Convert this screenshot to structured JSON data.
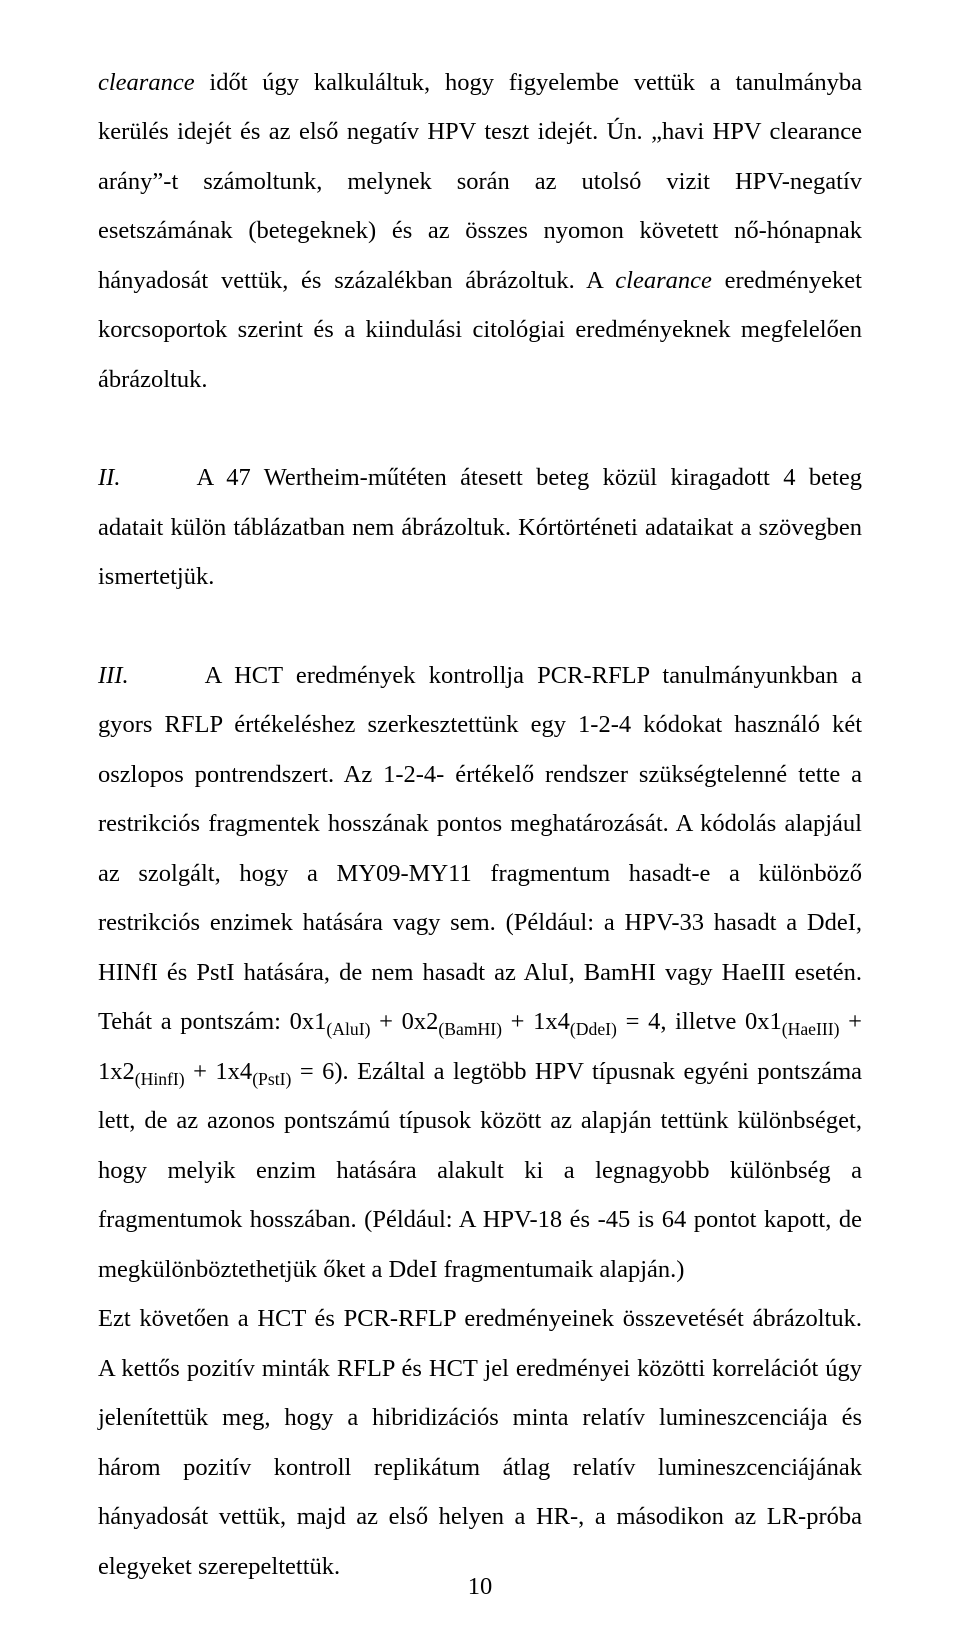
{
  "p1": {
    "lead_italic": "clearance",
    "rest": " időt úgy kalkuláltuk, hogy figyelembe vettük a tanulmányba kerülés idejét és az első negatív HPV teszt idejét. Ún. „havi HPV clearance arány”-t számoltunk, melynek során az utolsó vizit HPV-negatív esetszámának (betegeknek) és az összes nyomon követett nő-hónapnak hányadosát vettük, és százalékban ábrázoltuk. A ",
    "mid_italic": "clearance",
    "tail": " eredményeket korcsoportok szerint és a kiindulási citológiai eredményeknek megfelelően ábrázoltuk."
  },
  "p2": {
    "numeral": "II.",
    "text": "A 47 Wertheim-műtéten átesett beteg közül kiragadott 4 beteg adatait külön táblázatban nem ábrázoltuk. Kórtörténeti adataikat a szövegben ismertetjük."
  },
  "p3": {
    "numeral": "III.",
    "text_a": "A HCT eredmények kontrollja PCR-RFLP tanulmányunkban a gyors RFLP értékeléshez szerkesztettünk egy 1-2-4 kódokat használó két oszlopos pontrendszert. Az 1-2-4- értékelő rendszer szükségtelenné tette a restrikciós fragmentek hosszának pontos meghatározását. A kódolás alapjául az szolgált, hogy a MY09-MY11 fragmentum hasadt-e a különböző restrikciós enzimek hatására vagy sem. (Például: a HPV-33 hasadt a DdeI, HINfI és PstI hatására, de nem hasadt az AluI, BamHI vagy HaeIII esetén. Tehát a pontszám: 0x1",
    "sub1": "(AluI)",
    "text_b": " + 0x2",
    "sub2": "(BamHI)",
    "text_c": " + 1x4",
    "sub3": "(DdeI)",
    "text_d": " = 4, illetve 0x1",
    "sub4": "(HaeIII)",
    "text_e": " + 1x2",
    "sub5": "(HinfI)",
    "text_f": " + 1x4",
    "sub6": "(PstI)",
    "text_g": " = 6). Ezáltal a legtöbb HPV típusnak egyéni pontszáma lett, de az azonos pontszámú típusok között az alapján tettünk különbséget, hogy melyik enzim hatására alakult ki a legnagyobb különbség a fragmentumok hosszában. (Például: A HPV-18 és -45 is 64 pontot kapott, de megkülönböztethetjük őket a DdeI fragmentumaik alapján.)"
  },
  "p4": {
    "text": "Ezt követően a HCT és PCR-RFLP eredményeinek összevetését ábrázoltuk. A kettős pozitív minták RFLP és HCT jel eredményei közötti korrelációt úgy jelenítettük meg, hogy a hibridizációs minta relatív lumineszcenciája és három pozitív kontroll replikátum átlag relatív lumineszcenciájának hányadosát vettük, majd az első helyen a HR-, a másodikon az LR-próba elegyeket szerepeltettük."
  },
  "page_number": "10"
}
